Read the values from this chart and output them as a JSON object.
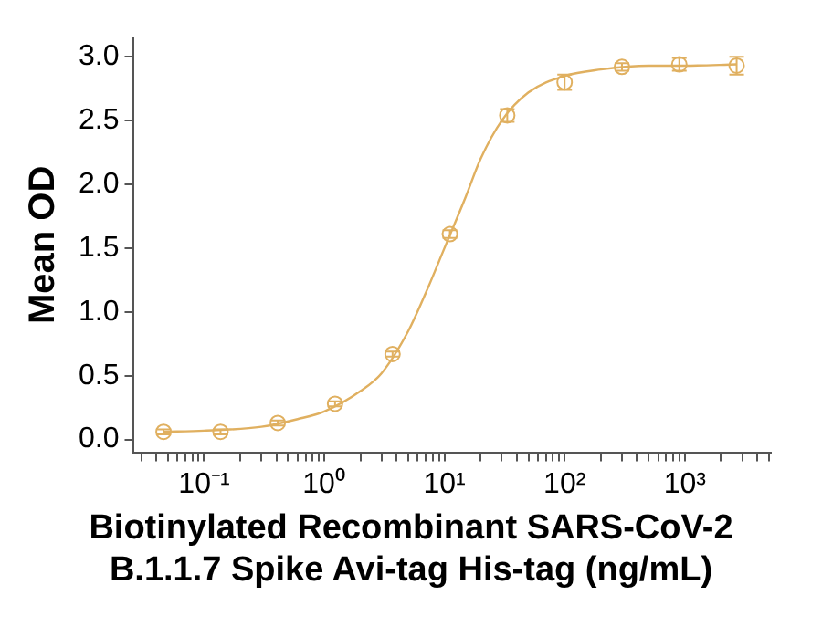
{
  "chart_data": {
    "type": "scatter",
    "xlabel": "Biotinylated Recombinant SARS-CoV-2\nB.1.1.7 Spike Avi-tag His-tag (ng/mL)",
    "ylabel": "Mean OD",
    "log": "x",
    "grid": false,
    "legend": false,
    "xlim": [
      0.026,
      5200
    ],
    "ylim": [
      -0.1,
      3.15
    ],
    "xticks": [
      {
        "value": 0.03,
        "label": null
      },
      {
        "value": 0.04,
        "label": null
      },
      {
        "value": 0.05,
        "label": null
      },
      {
        "value": 0.06,
        "label": null
      },
      {
        "value": 0.07,
        "label": null
      },
      {
        "value": 0.08,
        "label": null
      },
      {
        "value": 0.09,
        "label": null
      },
      {
        "value": 0.1,
        "label": "10⁻¹"
      },
      {
        "value": 0.2,
        "label": null
      },
      {
        "value": 0.3,
        "label": null
      },
      {
        "value": 0.4,
        "label": null
      },
      {
        "value": 0.5,
        "label": null
      },
      {
        "value": 0.6,
        "label": null
      },
      {
        "value": 0.7,
        "label": null
      },
      {
        "value": 0.8,
        "label": null
      },
      {
        "value": 0.9,
        "label": null
      },
      {
        "value": 1,
        "label": "10⁰"
      },
      {
        "value": 2,
        "label": null
      },
      {
        "value": 3,
        "label": null
      },
      {
        "value": 4,
        "label": null
      },
      {
        "value": 5,
        "label": null
      },
      {
        "value": 6,
        "label": null
      },
      {
        "value": 7,
        "label": null
      },
      {
        "value": 8,
        "label": null
      },
      {
        "value": 9,
        "label": null
      },
      {
        "value": 10,
        "label": "10¹"
      },
      {
        "value": 20,
        "label": null
      },
      {
        "value": 30,
        "label": null
      },
      {
        "value": 40,
        "label": null
      },
      {
        "value": 50,
        "label": null
      },
      {
        "value": 60,
        "label": null
      },
      {
        "value": 70,
        "label": null
      },
      {
        "value": 80,
        "label": null
      },
      {
        "value": 90,
        "label": null
      },
      {
        "value": 100,
        "label": "10²"
      },
      {
        "value": 200,
        "label": null
      },
      {
        "value": 300,
        "label": null
      },
      {
        "value": 400,
        "label": null
      },
      {
        "value": 500,
        "label": null
      },
      {
        "value": 600,
        "label": null
      },
      {
        "value": 700,
        "label": null
      },
      {
        "value": 800,
        "label": null
      },
      {
        "value": 900,
        "label": null
      },
      {
        "value": 1000,
        "label": "10³"
      },
      {
        "value": 2000,
        "label": null
      },
      {
        "value": 3000,
        "label": null
      },
      {
        "value": 4000,
        "label": null
      },
      {
        "value": 5000,
        "label": null
      }
    ],
    "yticks": [
      {
        "value": 0,
        "label": "0.0"
      },
      {
        "value": 0.5,
        "label": "0.5"
      },
      {
        "value": 1,
        "label": "1.0"
      },
      {
        "value": 1.5,
        "label": "1.5"
      },
      {
        "value": 2,
        "label": "2.0"
      },
      {
        "value": 2.5,
        "label": "2.5"
      },
      {
        "value": 3,
        "label": "3.0"
      }
    ],
    "series": [
      {
        "color": "#e0b060",
        "marker": "circle",
        "x": [
          0.046,
          0.137,
          0.41,
          1.23,
          3.7,
          11.1,
          33.3,
          100,
          300,
          900,
          2700
        ],
        "values": [
          0.06,
          0.06,
          0.13,
          0.28,
          0.67,
          1.61,
          2.54,
          2.8,
          2.92,
          2.94,
          2.93
        ],
        "errors": [
          0.02,
          0.02,
          0.02,
          0.02,
          0.02,
          0.03,
          0.05,
          0.06,
          0.03,
          0.05,
          0.07
        ]
      },
      {
        "type": "line",
        "color": "#e0b060",
        "marker": "none",
        "x": [
          0.046,
          0.1,
          0.3,
          0.6,
          1,
          2,
          3,
          5,
          7,
          10,
          15,
          20,
          30,
          50,
          100,
          200,
          500,
          1000,
          2700
        ],
        "values": [
          0.06,
          0.07,
          0.1,
          0.16,
          0.22,
          0.38,
          0.52,
          0.85,
          1.15,
          1.5,
          1.9,
          2.2,
          2.5,
          2.72,
          2.85,
          2.9,
          2.93,
          2.93,
          2.94
        ]
      }
    ]
  }
}
